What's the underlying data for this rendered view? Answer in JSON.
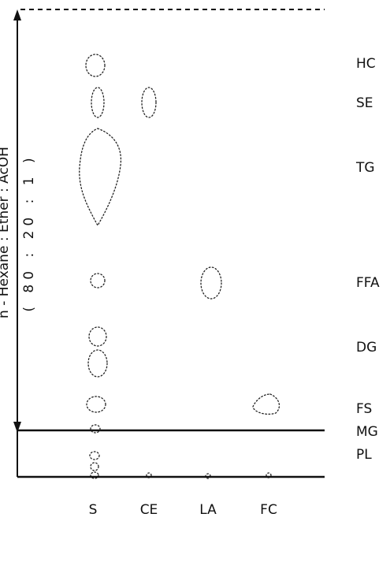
{
  "solvent_label": "n - Hexane : Ether : AcOH",
  "solvent_ratio": "( 80 : 20 : 1 )",
  "lanes": [
    {
      "id": "S",
      "label": "S"
    },
    {
      "id": "CE",
      "label": "CE"
    },
    {
      "id": "LA",
      "label": "LA"
    },
    {
      "id": "FC",
      "label": "FC"
    }
  ],
  "band_labels": [
    {
      "id": "HC",
      "label": "HC"
    },
    {
      "id": "SE",
      "label": "SE"
    },
    {
      "id": "TG",
      "label": "TG"
    },
    {
      "id": "FFA",
      "label": "FFA"
    },
    {
      "id": "DG",
      "label": "DG"
    },
    {
      "id": "FS",
      "label": "FS"
    },
    {
      "id": "MG",
      "label": "MG"
    },
    {
      "id": "PL",
      "label": "PL"
    }
  ]
}
